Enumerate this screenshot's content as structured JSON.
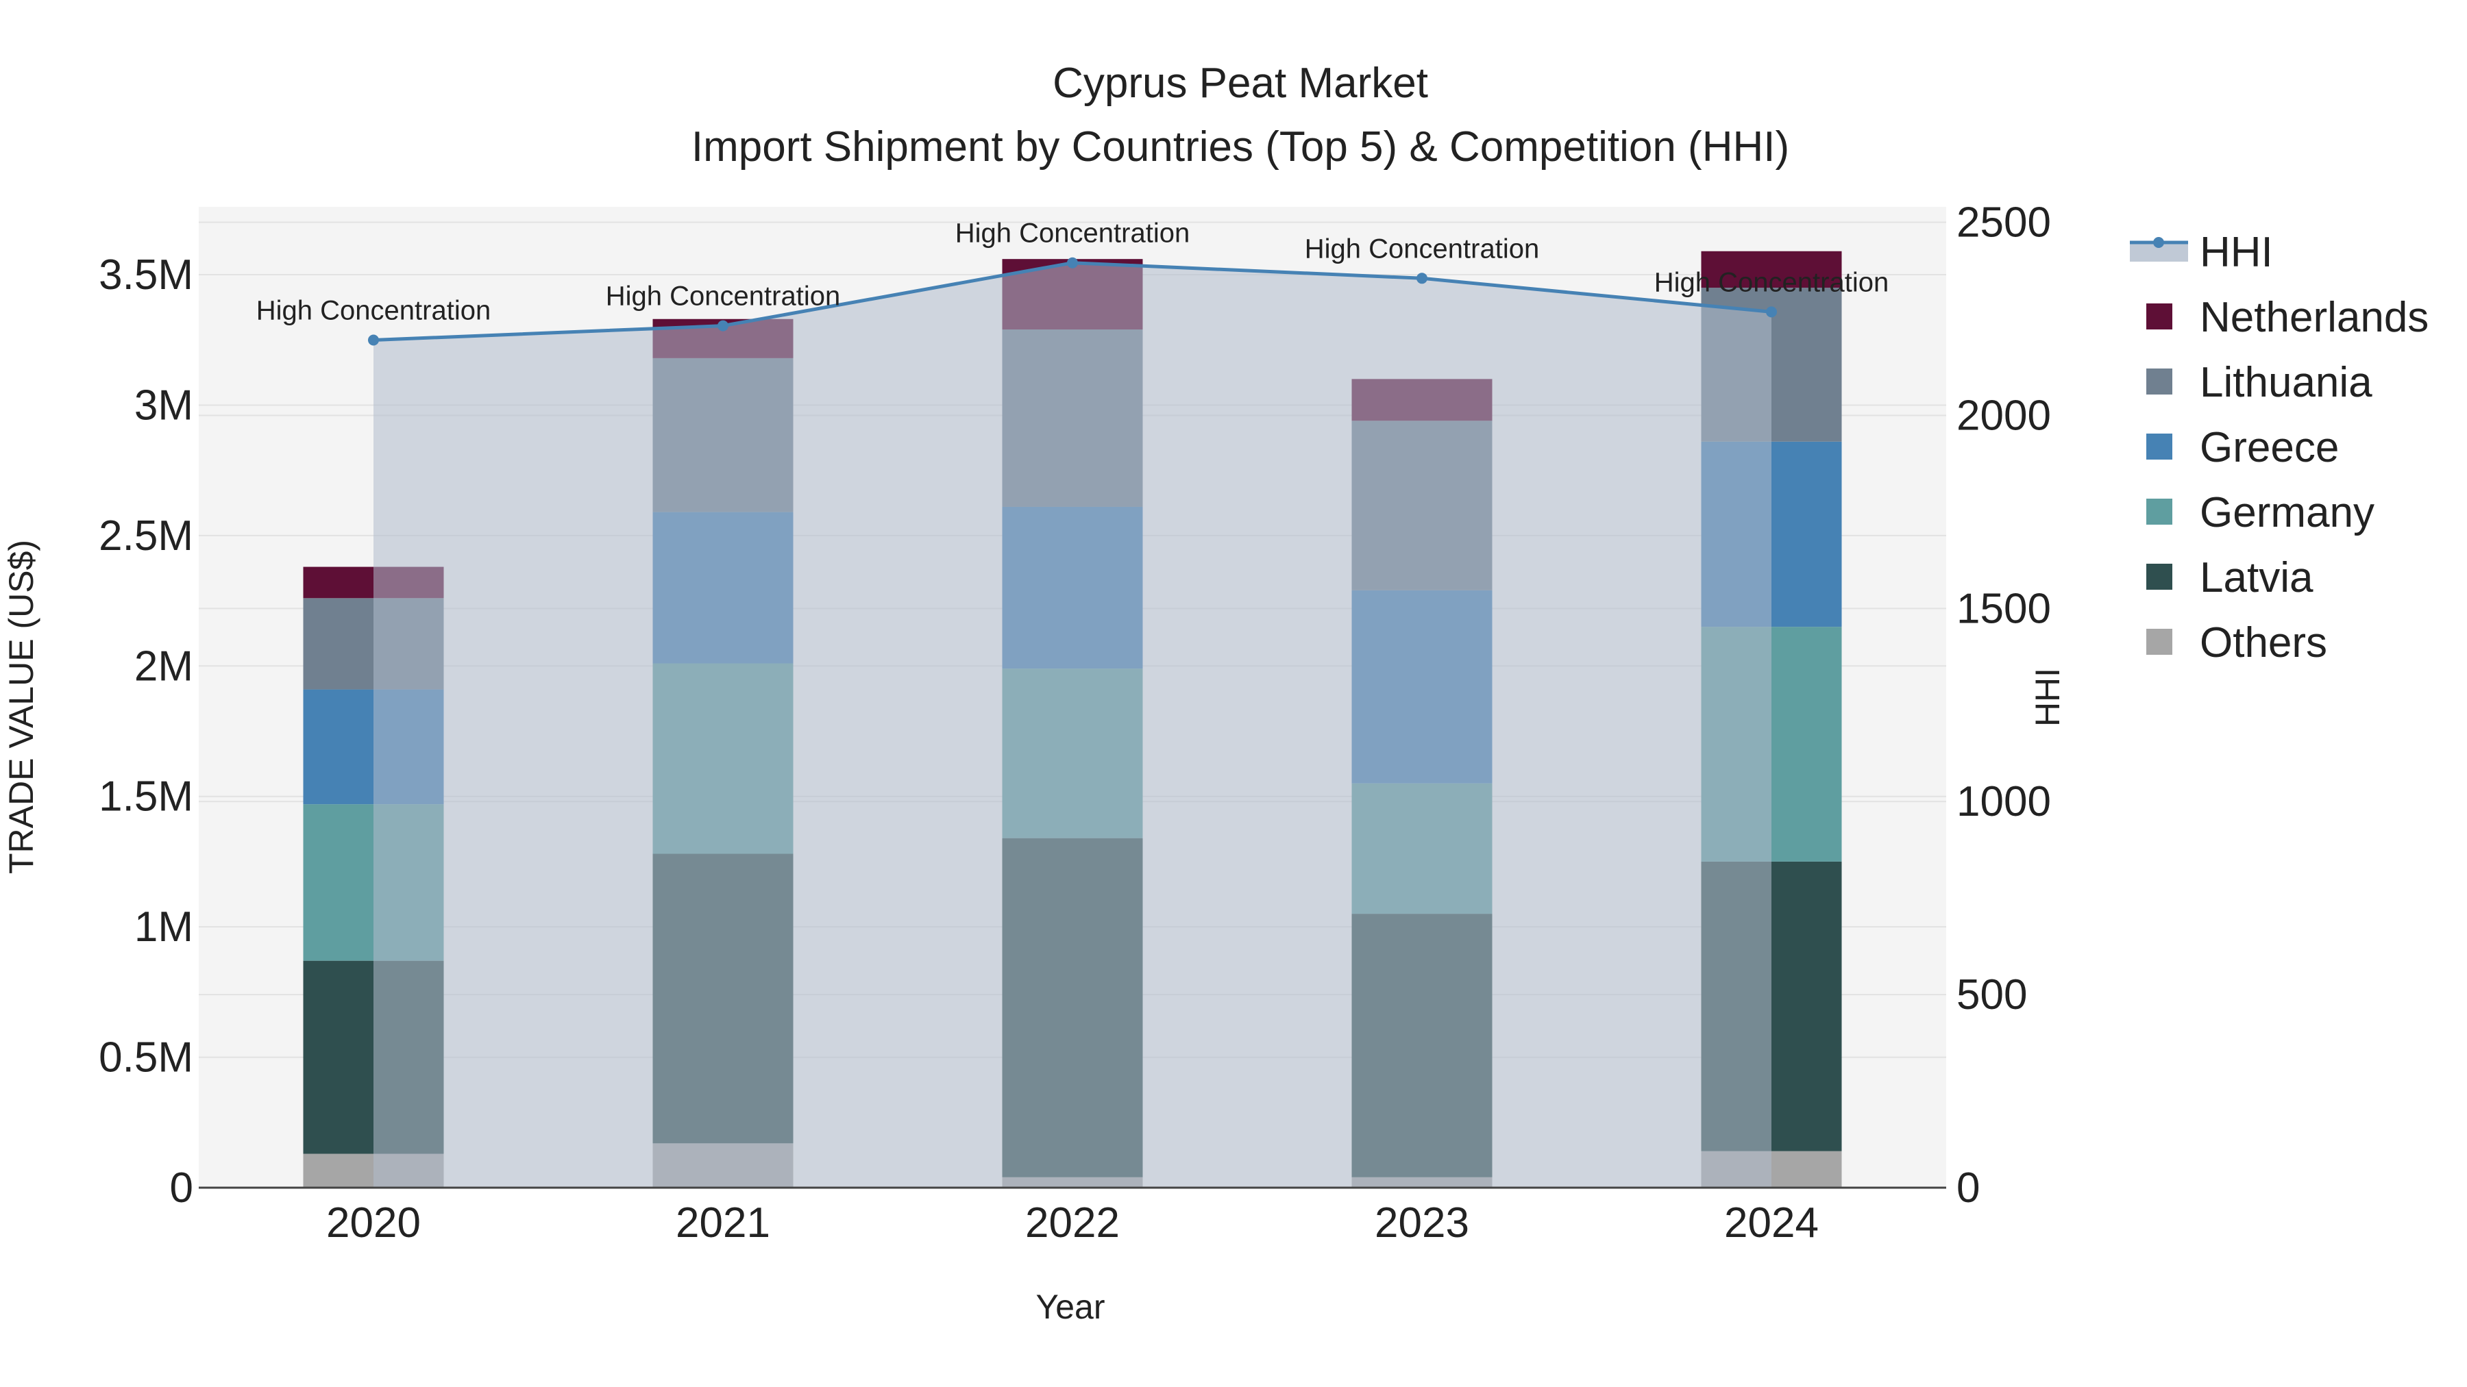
{
  "chart_data": {
    "type": "bar",
    "title": "Cyprus Peat Market",
    "subtitle": "Import Shipment by Countries (Top 5) & Competition (HHI)",
    "xlabel": "Year",
    "ylabel": "TRADE VALUE (US$)",
    "y2label": "HHI",
    "categories": [
      "2020",
      "2021",
      "2022",
      "2023",
      "2024"
    ],
    "ylim": [
      0,
      3760000
    ],
    "y2lim": [
      0,
      2540
    ],
    "yticks": [
      {
        "v": 0,
        "label": "0"
      },
      {
        "v": 500000,
        "label": "0.5M"
      },
      {
        "v": 1000000,
        "label": "1M"
      },
      {
        "v": 1500000,
        "label": "1.5M"
      },
      {
        "v": 2000000,
        "label": "2M"
      },
      {
        "v": 2500000,
        "label": "2.5M"
      },
      {
        "v": 3000000,
        "label": "3M"
      },
      {
        "v": 3500000,
        "label": "3.5M"
      }
    ],
    "y2ticks": [
      {
        "v": 0,
        "label": "0"
      },
      {
        "v": 500,
        "label": "500"
      },
      {
        "v": 1000,
        "label": "1000"
      },
      {
        "v": 1500,
        "label": "1500"
      },
      {
        "v": 2000,
        "label": "2000"
      },
      {
        "v": 2500,
        "label": "2500"
      }
    ],
    "series": [
      {
        "name": "Others",
        "color": "#a6a6a6",
        "values": [
          130000,
          170000,
          40000,
          40000,
          140000
        ]
      },
      {
        "name": "Latvia",
        "color": "#2f4f4f",
        "values": [
          740000,
          1110000,
          1300000,
          1010000,
          1110000
        ]
      },
      {
        "name": "Germany",
        "color": "#5f9ea0",
        "values": [
          600000,
          730000,
          650000,
          500000,
          900000
        ]
      },
      {
        "name": "Greece",
        "color": "#4682b4",
        "values": [
          440000,
          580000,
          620000,
          740000,
          710000
        ]
      },
      {
        "name": "Lithuania",
        "color": "#708090",
        "values": [
          350000,
          590000,
          680000,
          650000,
          590000
        ]
      },
      {
        "name": "Netherlands",
        "color": "#5e0f36",
        "values": [
          120000,
          150000,
          270000,
          160000,
          140000
        ]
      }
    ],
    "hhi": {
      "name": "HHI",
      "color": "#4682b4",
      "values": [
        2195,
        2232,
        2395,
        2355,
        2268
      ],
      "labels": [
        "High Concentration",
        "High Concentration",
        "High Concentration",
        "High Concentration",
        "High Concentration"
      ]
    },
    "legend_order": [
      "HHI",
      "Netherlands",
      "Lithuania",
      "Greece",
      "Germany",
      "Latvia",
      "Others"
    ],
    "legend_position": "right",
    "grid": true
  }
}
